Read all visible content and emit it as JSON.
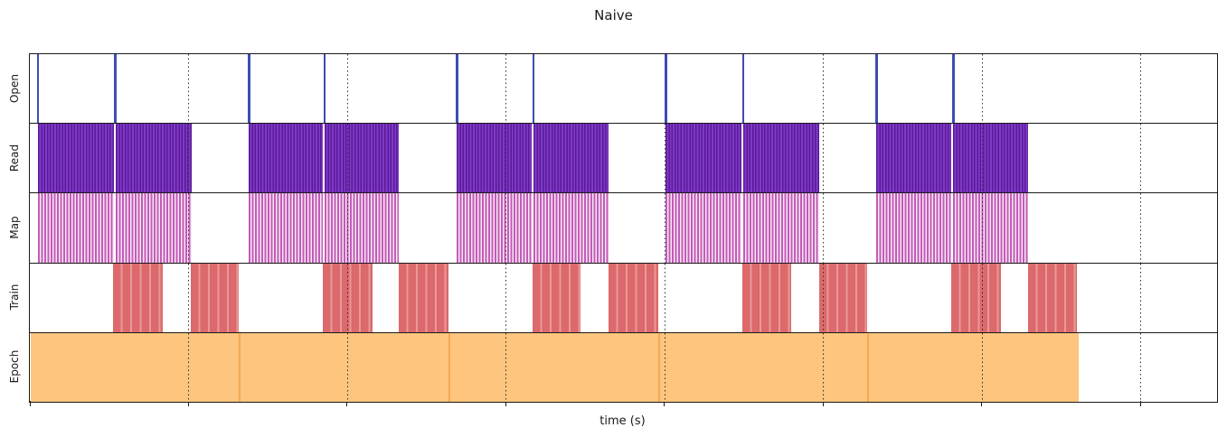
{
  "chart_data": {
    "type": "broken_barh_timeline",
    "title": "Naive",
    "xlabel": "time (s)",
    "x_axis": {
      "tick_labels_shown": false,
      "tick_positions_pct": [
        0,
        13.36,
        26.73,
        40.09,
        53.46,
        66.82,
        80.18,
        93.55
      ],
      "gridline_positions_pct": [
        13.36,
        26.73,
        40.09,
        53.46,
        66.82,
        80.18,
        93.55
      ],
      "gridline_style": "dotted",
      "gridline_color": "#2e2e2e"
    },
    "rows": [
      {
        "label": "Open",
        "kind": "event",
        "color": "#3d4db5",
        "bar_w_pct": 0.19,
        "events_pct": [
          0.61,
          7.12,
          18.36,
          24.72,
          35.89,
          42.32,
          53.49,
          60.0,
          71.24,
          77.71
        ]
      },
      {
        "label": "Read",
        "kind": "interval",
        "pattern": {
          "dark": "#5c1899",
          "light": "#7e3bc7",
          "dark_w": 1.5,
          "light_w": 1.8
        },
        "intervals_pct": [
          [
            0.65,
            6.4
          ],
          [
            7.24,
            6.36
          ],
          [
            18.4,
            6.25
          ],
          [
            24.84,
            6.21
          ],
          [
            35.92,
            6.32
          ],
          [
            42.44,
            6.29
          ],
          [
            53.52,
            6.4
          ],
          [
            60.11,
            6.36
          ],
          [
            71.28,
            6.32
          ],
          [
            77.79,
            6.29
          ]
        ]
      },
      {
        "label": "Map",
        "kind": "interval",
        "pattern": {
          "dark": "#c45ab9",
          "light": "#f6e9f4",
          "dark_w": 2,
          "light_w": 1.5
        },
        "intervals_pct": [
          [
            0.65,
            6.4
          ],
          [
            7.24,
            6.36
          ],
          [
            18.4,
            6.25
          ],
          [
            24.84,
            6.21
          ],
          [
            35.92,
            6.32
          ],
          [
            42.44,
            6.29
          ],
          [
            53.52,
            6.4
          ],
          [
            60.11,
            6.36
          ],
          [
            71.28,
            6.32
          ],
          [
            77.79,
            6.29
          ]
        ]
      },
      {
        "label": "Train",
        "kind": "interval",
        "pattern": {
          "dark": "#dc696b",
          "light": "#e9999a",
          "dark_w": 8.5,
          "light_w": 2
        },
        "intervals_pct": [
          [
            6.97,
            4.19
          ],
          [
            13.56,
            4.04
          ],
          [
            24.69,
            4.19
          ],
          [
            31.05,
            4.19
          ],
          [
            42.32,
            4.04
          ],
          [
            48.72,
            4.19
          ],
          [
            60.0,
            4.11
          ],
          [
            66.48,
            4.04
          ],
          [
            77.6,
            4.23
          ],
          [
            84.08,
            4.15
          ]
        ]
      },
      {
        "label": "Epoch",
        "kind": "interval",
        "fill": "#fdc57e",
        "divider_color": "#f7a851",
        "intervals_pct": [
          [
            0.08,
            17.49
          ],
          [
            17.56,
            17.68
          ],
          [
            35.24,
            17.68
          ],
          [
            52.91,
            17.64
          ],
          [
            70.55,
            17.68
          ]
        ]
      }
    ]
  }
}
